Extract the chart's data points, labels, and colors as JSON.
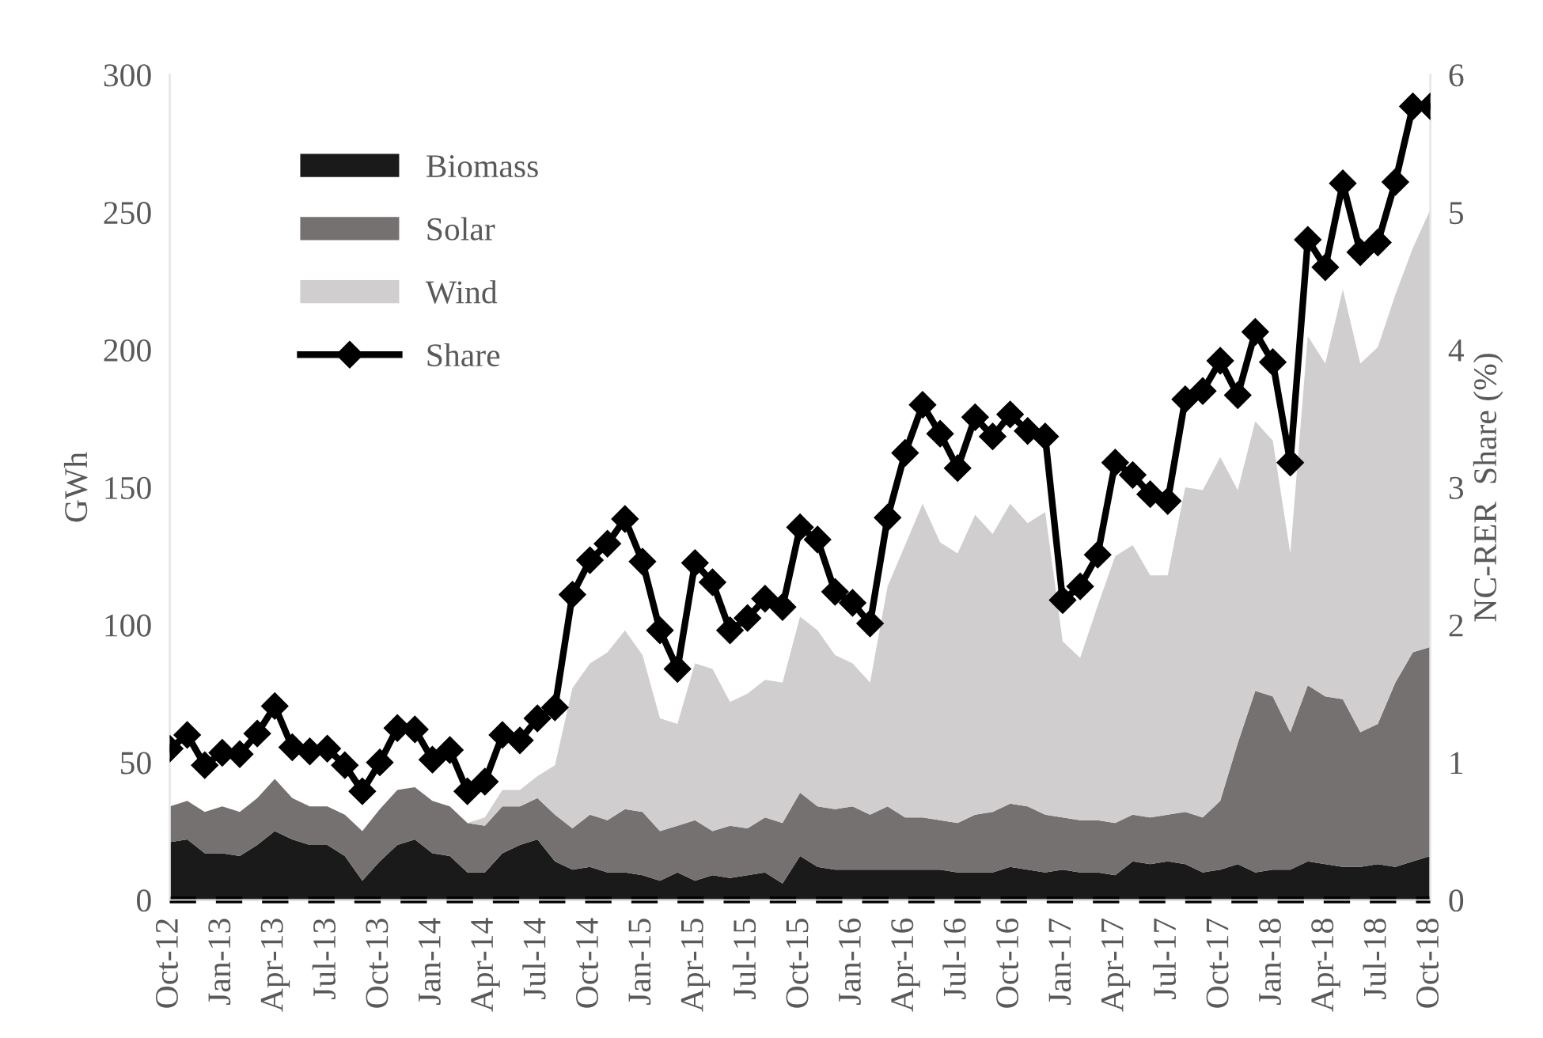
{
  "chart_data": {
    "type": "area",
    "stacked": true,
    "categories": [
      "Oct-12",
      null,
      null,
      "Jan-13",
      null,
      null,
      "Apr-13",
      null,
      null,
      "Jul-13",
      null,
      null,
      "Oct-13",
      null,
      null,
      "Jan-14",
      null,
      null,
      "Apr-14",
      null,
      null,
      "Jul-14",
      null,
      null,
      "Oct-14",
      null,
      null,
      "Jan-15",
      null,
      null,
      "Apr-15",
      null,
      null,
      "Jul-15",
      null,
      null,
      "Oct-15",
      null,
      null,
      "Jan-16",
      null,
      null,
      "Apr-16",
      null,
      null,
      "Jul-16",
      null,
      null,
      "Oct-16",
      null,
      null,
      "Jan-17",
      null,
      null,
      "Apr-17",
      null,
      null,
      "Jul-17",
      null,
      null,
      "Oct-17",
      null,
      null,
      "Jan-18",
      null,
      null,
      "Apr-18",
      null,
      null,
      "Jul-18",
      null,
      null,
      "Oct-18"
    ],
    "series": [
      {
        "name": "Biomass",
        "color": "#1a1a1a",
        "values": [
          21,
          22,
          17,
          17,
          16,
          20,
          25,
          22,
          20,
          20,
          16,
          7,
          14,
          20,
          22,
          17,
          16,
          10,
          10,
          17,
          20,
          22,
          14,
          11,
          12,
          10,
          10,
          9,
          7,
          10,
          7,
          9,
          8,
          9,
          10,
          6,
          16,
          12,
          11,
          11,
          11,
          11,
          11,
          11,
          11,
          10,
          10,
          10,
          12,
          11,
          10,
          11,
          10,
          10,
          9,
          14,
          13,
          14,
          13,
          10,
          11,
          13,
          10,
          11,
          11,
          14,
          13,
          12,
          12,
          13,
          12,
          14,
          16
        ]
      },
      {
        "name": "Solar",
        "color": "#767171",
        "values": [
          13,
          14,
          15,
          17,
          16,
          17,
          19,
          15,
          14,
          14,
          15,
          18,
          19,
          20,
          19,
          19,
          18,
          18,
          17,
          17,
          14,
          15,
          17,
          15,
          19,
          19,
          23,
          23,
          18,
          17,
          22,
          16,
          19,
          17,
          20,
          22,
          23,
          22,
          22,
          23,
          20,
          23,
          19,
          19,
          18,
          18,
          21,
          22,
          23,
          23,
          21,
          19,
          19,
          19,
          19,
          17,
          17,
          17,
          19,
          20,
          25,
          44,
          66,
          63,
          50,
          64,
          61,
          61,
          49,
          51,
          67,
          76,
          76
        ]
      },
      {
        "name": "Wind",
        "color": "#d0cecf",
        "values": [
          0,
          0,
          0,
          0,
          0,
          0,
          0,
          0,
          0,
          0,
          0,
          0,
          0,
          0,
          0,
          0,
          0,
          0,
          3,
          6,
          6,
          8,
          18,
          51,
          55,
          61,
          65,
          57,
          41,
          37,
          57,
          59,
          45,
          49,
          50,
          51,
          64,
          64,
          56,
          52,
          48,
          80,
          99,
          114,
          101,
          98,
          109,
          101,
          109,
          103,
          110,
          64,
          59,
          78,
          97,
          98,
          88,
          87,
          118,
          119,
          125,
          92,
          98,
          93,
          65,
          127,
          121,
          149,
          134,
          137,
          141,
          147,
          159
        ]
      },
      {
        "name": "Share",
        "color": "#000000",
        "type": "line",
        "axis": "y2",
        "marker": "diamond",
        "values": [
          1.1,
          1.2,
          0.98,
          1.07,
          1.06,
          1.21,
          1.41,
          1.11,
          1.08,
          1.1,
          0.98,
          0.79,
          1.0,
          1.25,
          1.24,
          1.02,
          1.09,
          0.79,
          0.86,
          1.2,
          1.16,
          1.32,
          1.4,
          2.22,
          2.47,
          2.59,
          2.77,
          2.46,
          1.96,
          1.68,
          2.45,
          2.31,
          1.96,
          2.05,
          2.19,
          2.13,
          2.71,
          2.62,
          2.24,
          2.16,
          2.01,
          2.78,
          3.25,
          3.6,
          3.39,
          3.14,
          3.51,
          3.37,
          3.53,
          3.41,
          3.37,
          2.18,
          2.28,
          2.51,
          3.18,
          3.09,
          2.95,
          2.9,
          3.64,
          3.7,
          3.92,
          3.67,
          4.13,
          3.91,
          3.18,
          4.8,
          4.6,
          5.21,
          4.71,
          4.78,
          5.22,
          5.77,
          5.77
        ]
      }
    ],
    "ylabel": "GWh",
    "y2label": "NC-RER  Share (%)",
    "ylim": [
      0,
      300
    ],
    "yticks": [
      0,
      50,
      100,
      150,
      200,
      250,
      300
    ],
    "y2lim": [
      0,
      6
    ],
    "y2ticks": [
      0,
      1,
      2,
      3,
      4,
      5,
      6
    ],
    "ref_lines": [
      {
        "axis": "y",
        "value": 0,
        "color": "#000000",
        "line_style": "dashed"
      }
    ],
    "legend": "top left",
    "grid": false
  }
}
